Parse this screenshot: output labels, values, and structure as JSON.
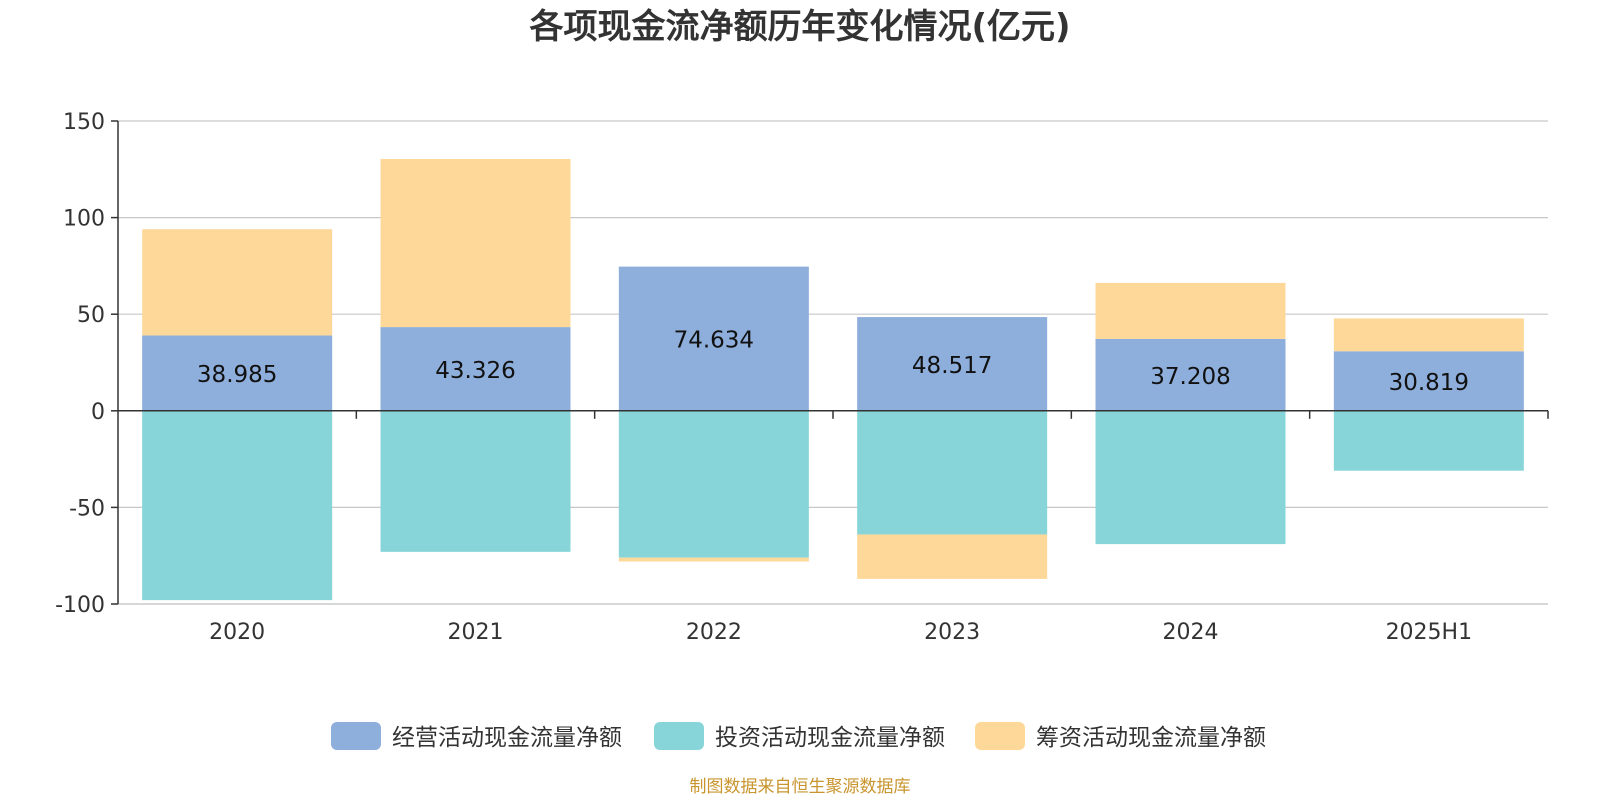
{
  "chart_data": {
    "type": "bar",
    "stacked": true,
    "title": "各项现金流净额历年变化情况(亿元)",
    "categories": [
      "2020",
      "2021",
      "2022",
      "2023",
      "2024",
      "2025H1"
    ],
    "ylim": [
      -100,
      150
    ],
    "yticks": [
      150,
      100,
      50,
      0,
      -50,
      -100
    ],
    "ytick_labels": [
      "150",
      "100",
      "50",
      "0",
      "-50",
      "-100"
    ],
    "grid": true,
    "legend_position": "bottom-center",
    "series": [
      {
        "name": "经营活动现金流量净额",
        "color": "#8eaedb",
        "values": [
          38.985,
          43.326,
          74.634,
          48.517,
          37.208,
          30.819
        ],
        "labels": [
          "38.985",
          "43.326",
          "74.634",
          "48.517",
          "37.208",
          "30.819"
        ]
      },
      {
        "name": "投资活动现金流量净额",
        "color": "#87d5d8",
        "values": [
          -98,
          -73,
          -76,
          -64,
          -69,
          -31
        ]
      },
      {
        "name": "筹资活动现金流量净额",
        "color": "#fed898",
        "values": [
          55,
          87,
          -2,
          -23,
          29,
          17
        ]
      }
    ]
  },
  "source_text": "制图数据来自恒生聚源数据库",
  "source_color": "#c8952e"
}
